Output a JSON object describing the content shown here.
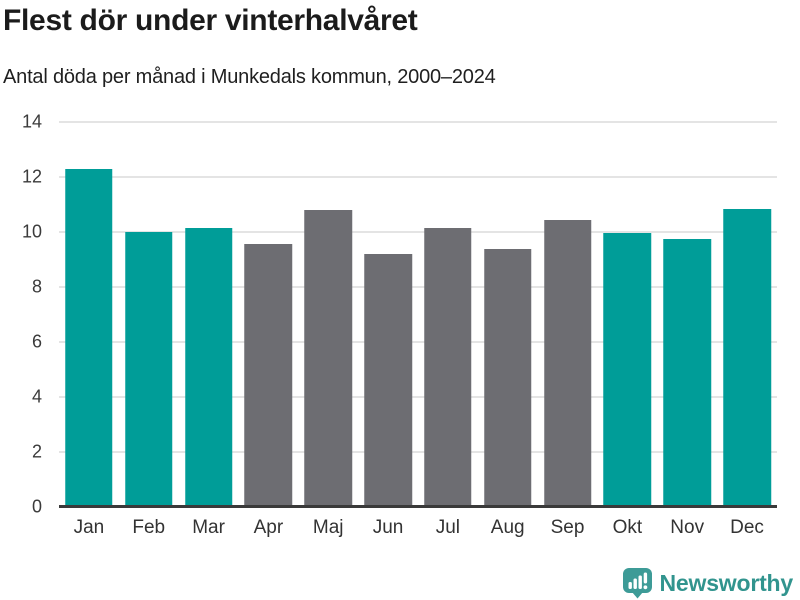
{
  "header": {
    "title": "Flest dör under vinterhalvåret",
    "subtitle": "Antal döda per månad i Munkedals kommun, 2000–2024"
  },
  "chart_data": {
    "type": "bar",
    "title": "Flest dör under vinterhalvåret",
    "subtitle": "Antal döda per månad i Munkedals kommun, 2000–2024",
    "categories": [
      "Jan",
      "Feb",
      "Mar",
      "Apr",
      "Maj",
      "Jun",
      "Jul",
      "Aug",
      "Sep",
      "Okt",
      "Nov",
      "Dec"
    ],
    "values": [
      12.3,
      10.0,
      10.15,
      9.55,
      10.8,
      9.2,
      10.15,
      9.4,
      10.45,
      9.95,
      9.75,
      10.85
    ],
    "highlight_winter_months": [
      true,
      true,
      true,
      false,
      false,
      false,
      false,
      false,
      false,
      true,
      true,
      true
    ],
    "xlabel": "",
    "ylabel": "",
    "ylim": [
      0,
      14
    ],
    "yticks": [
      0,
      2,
      4,
      6,
      8,
      10,
      12,
      14
    ],
    "grid": true,
    "legend": "none",
    "colors": {
      "highlight": "#009d98",
      "base": "#6d6d72",
      "gridline": "#e4e4e4",
      "axis": "#3a3a3a"
    }
  },
  "footer": {
    "brand": "Newsworthy",
    "logo_icon": "bar-chart-speech-bubble-icon",
    "brand_color": "#31948e"
  }
}
